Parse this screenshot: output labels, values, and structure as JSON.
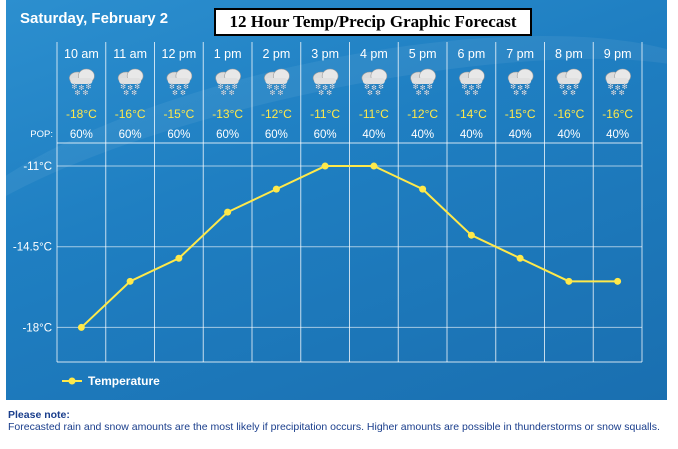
{
  "header": {
    "date": "Saturday, February 2",
    "title": "12 Hour Temp/Precip Graphic Forecast"
  },
  "pop_label": "POP:",
  "chart_data": {
    "type": "line",
    "x": [
      "10 am",
      "11 am",
      "12 pm",
      "1 pm",
      "2 pm",
      "3 pm",
      "4 pm",
      "5 pm",
      "6 pm",
      "7 pm",
      "8 pm",
      "9 pm"
    ],
    "temp_labels": [
      "-18°C",
      "-16°C",
      "-15°C",
      "-13°C",
      "-12°C",
      "-11°C",
      "-11°C",
      "-12°C",
      "-14°C",
      "-15°C",
      "-16°C",
      "-16°C"
    ],
    "pop_labels": [
      "60%",
      "60%",
      "60%",
      "60%",
      "60%",
      "60%",
      "40%",
      "40%",
      "40%",
      "40%",
      "40%",
      "40%"
    ],
    "pop": [
      60,
      60,
      60,
      60,
      60,
      60,
      40,
      40,
      40,
      40,
      40,
      40
    ],
    "conditions": [
      "snow",
      "snow",
      "snow",
      "snow",
      "snow",
      "snow",
      "snow",
      "snow",
      "snow",
      "snow",
      "snow",
      "snow"
    ],
    "series": [
      {
        "name": "Temperature",
        "values": [
          -18,
          -16,
          -15,
          -13,
          -12,
          -11,
          -11,
          -12,
          -14,
          -15,
          -16,
          -16
        ],
        "color": "#ffe94a"
      }
    ],
    "yticks": [
      -11,
      -14.5,
      -18
    ],
    "ytick_labels": [
      "-11°C",
      "-14.5°C",
      "-18°C"
    ],
    "ylim": [
      -19.5,
      -10
    ],
    "grid": true,
    "legend": "bottom-left",
    "title": "12 Hour Temp/Precip Graphic Forecast",
    "xlabel": "",
    "ylabel": ""
  },
  "note": {
    "heading": "Please note:",
    "text": "Forecasted rain and snow amounts are the most likely if precipitation occurs. Higher amounts are possible in thunderstorms or snow squalls."
  }
}
